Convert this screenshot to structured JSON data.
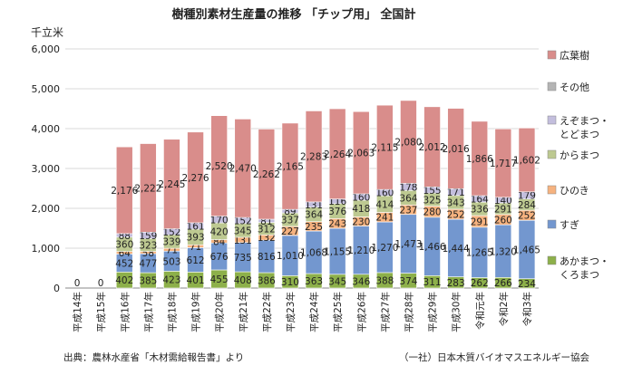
{
  "chart_data": {
    "type": "bar",
    "stacked": true,
    "title": "樹種別素材生産量の推移 「チップ用」 全国計",
    "ylabel": "千立米",
    "ylim": [
      0,
      6000
    ],
    "yticks": [
      "0",
      "1,000",
      "2,000",
      "3,000",
      "4,000",
      "5,000",
      "6,000"
    ],
    "grid": true,
    "legend_position": "right",
    "categories": [
      "平成14年",
      "平成15年",
      "平成16年",
      "平成17年",
      "平成18年",
      "平成19年",
      "平成20年",
      "平成21年",
      "平成22年",
      "平成23年",
      "平成24年",
      "平成25年",
      "平成26年",
      "平成27年",
      "平成28年",
      "平成29年",
      "平成30年",
      "令和元年",
      "令和2年",
      "令和3年"
    ],
    "series": [
      {
        "name": "あかまつ・くろまつ",
        "color": "#8db04a",
        "values": [
          0,
          0,
          402,
          385,
          423,
          401,
          455,
          408,
          386,
          310,
          363,
          345,
          346,
          388,
          374,
          311,
          283,
          262,
          266,
          234
        ]
      },
      {
        "name": "すぎ",
        "color": "#7397cf",
        "values": [
          0,
          0,
          452,
          477,
          503,
          612,
          676,
          735,
          816,
          1010,
          1068,
          1155,
          1210,
          1270,
          1473,
          1466,
          1444,
          1265,
          1320,
          1465
        ]
      },
      {
        "name": "ひのき",
        "color": "#f6b27f",
        "values": [
          0,
          0,
          64,
          58,
          71,
          71,
          84,
          131,
          132,
          227,
          235,
          243,
          230,
          241,
          237,
          280,
          252,
          291,
          260,
          252
        ]
      },
      {
        "name": "からまつ",
        "color": "#bdc991",
        "values": [
          0,
          0,
          360,
          323,
          339,
          393,
          420,
          345,
          312,
          337,
          364,
          376,
          418,
          414,
          364,
          325,
          343,
          336,
          291,
          284
        ]
      },
      {
        "name": "えぞまつ・とどまつ",
        "color": "#c3bedd",
        "values": [
          0,
          0,
          88,
          159,
          152,
          161,
          170,
          152,
          81,
          89,
          131,
          116,
          160,
          160,
          178,
          155,
          171,
          164,
          140,
          179
        ]
      },
      {
        "name": "その他",
        "color": "#b4b4b4",
        "values": [
          0,
          0,
          0,
          0,
          0,
          0,
          0,
          0,
          0,
          0,
          0,
          0,
          0,
          0,
          0,
          0,
          0,
          0,
          0,
          0
        ]
      },
      {
        "name": "広葉樹",
        "color": "#d98d8b",
        "values": [
          0,
          0,
          2176,
          2222,
          2245,
          2276,
          2520,
          2470,
          2262,
          2165,
          2283,
          2264,
          2063,
          2115,
          2080,
          2012,
          2016,
          1866,
          1717,
          1602
        ]
      }
    ],
    "visible_zero_labels": [
      "0",
      "0"
    ],
    "total_heights_note": "",
    "legend_labels": {
      "広葉樹": "広葉樹",
      "その他": "その他",
      "えぞまつ・とどまつ": [
        "えぞまつ・",
        "とどまつ"
      ],
      "からまつ": "からまつ",
      "ひのき": "ひのき",
      "すぎ": "すぎ",
      "あかまつ・くろまつ": [
        "あかまつ・",
        "くろまつ"
      ]
    }
  },
  "footer": {
    "source": "出典：農林水産省「木材需給報告書」より",
    "credit": "（一社）日本木質バイオマスエネルギー協会"
  }
}
